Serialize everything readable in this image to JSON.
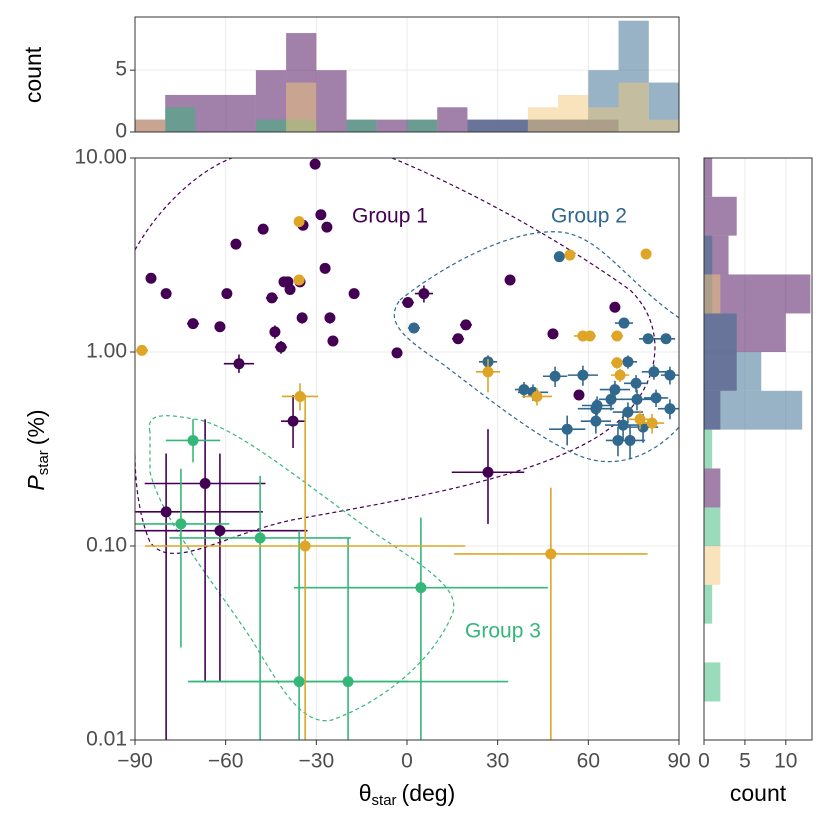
{
  "chart_data": [
    {
      "type": "scatter",
      "xlabel": {
        "symbol": "θ",
        "subscript": "star",
        "unit": "(deg)"
      },
      "ylabel": {
        "symbol": "P",
        "subscript": "star",
        "unit": "(%)"
      },
      "xlim": [
        -90,
        90
      ],
      "xticks": [
        {
          "value": -90,
          "label": "−90"
        },
        {
          "value": -60,
          "label": "−60"
        },
        {
          "value": -30,
          "label": "−30"
        },
        0,
        30,
        60,
        90
      ],
      "ylim": [
        0.01,
        10
      ],
      "log_y": true,
      "yticks": [
        0.01,
        {
          "value": 0.1,
          "label": "0.10"
        },
        {
          "value": 1,
          "label": "1.00"
        },
        {
          "value": 10,
          "label": "10.00"
        }
      ],
      "grid": true,
      "series": [
        {
          "name": "Group 1",
          "color": "#440154",
          "x": [
            -30.4,
            -28.5,
            -34.4,
            -26.5,
            -56.6,
            -47.6,
            -84.7,
            -79.7,
            -59.6,
            -40.7,
            -39.4,
            -38.7,
            -35.4,
            -27.1,
            -17.5,
            -44.7,
            -70.8,
            -61.9,
            -34.7,
            -25.5,
            -43.7,
            -24.5,
            -41.7,
            -55.6,
            -3.3,
            0.3,
            5.6,
            19.5,
            16.9,
            34.1,
            48.3,
            56.9,
            68.8,
            -37.7,
            26.8,
            -66.8,
            -79.7,
            -61.9
          ],
          "values": [
            9.3,
            5.1,
            4.5,
            4.4,
            3.6,
            4.3,
            2.4,
            2.0,
            2.0,
            2.3,
            2.3,
            2.1,
            2.3,
            2.7,
            2.0,
            1.9,
            1.4,
            1.35,
            1.5,
            1.5,
            1.27,
            1.14,
            1.06,
            0.87,
            0.99,
            1.8,
            2.0,
            1.38,
            1.17,
            2.35,
            1.24,
            0.6,
            1.7,
            0.44,
            0.24,
            0.21,
            0.15,
            0.12
          ],
          "xerr": [
            null,
            null,
            null,
            null,
            null,
            null,
            null,
            null,
            null,
            null,
            null,
            null,
            null,
            null,
            null,
            2,
            2,
            null,
            1.5,
            1.5,
            1.5,
            1.5,
            2,
            5,
            null,
            2,
            3,
            2,
            2,
            null,
            1.5,
            null,
            1.5,
            4,
            12,
            20,
            32,
            29
          ],
          "ylower": [
            null,
            null,
            null,
            null,
            null,
            null,
            null,
            null,
            null,
            null,
            null,
            null,
            null,
            null,
            null,
            1.8,
            1.33,
            null,
            1.4,
            1.4,
            1.17,
            1.08,
            0.98,
            0.78,
            null,
            1.7,
            1.8,
            1.3,
            1.1,
            null,
            1.17,
            null,
            1.6,
            0.32,
            0.13,
            0.02,
            0.01,
            0.02
          ],
          "yupper": [
            null,
            null,
            null,
            null,
            null,
            null,
            null,
            null,
            null,
            null,
            null,
            null,
            null,
            null,
            null,
            2.0,
            1.47,
            null,
            1.6,
            1.6,
            1.37,
            1.2,
            1.14,
            0.97,
            null,
            1.9,
            2.2,
            1.46,
            1.24,
            null,
            1.31,
            null,
            1.8,
            0.6,
            0.4,
            0.45,
            0.3,
            0.3
          ]
        },
        {
          "name": "Group 2",
          "color": "#31688e",
          "x": [
            50.4,
            2.3,
            26.8,
            38.7,
            49.0,
            41.7,
            58.2,
            62.5,
            53.0,
            62.9,
            67.5,
            71.8,
            73.1,
            68.8,
            75.8,
            79.8,
            85.7,
            81.7,
            87.0,
            87.0,
            71.5,
            73.8,
            78.1,
            69.8,
            76.1,
            73.1,
            82.4,
            62.5
          ],
          "values": [
            3.1,
            1.33,
            0.89,
            0.64,
            0.75,
            0.62,
            0.76,
            0.51,
            0.4,
            0.53,
            0.57,
            1.41,
            0.89,
            0.64,
            0.69,
            1.17,
            1.17,
            0.79,
            0.76,
            0.51,
            0.42,
            0.35,
            0.41,
            0.35,
            0.57,
            0.49,
            0.58,
            0.44
          ],
          "xerr": [
            null,
            2,
            3,
            3,
            4,
            5,
            5,
            6,
            6,
            5,
            4,
            3,
            3,
            5,
            4,
            3,
            3,
            4,
            3,
            4,
            6,
            5,
            5,
            4,
            5,
            5,
            4,
            5
          ],
          "ylower": [
            null,
            1.25,
            0.82,
            0.58,
            0.66,
            0.56,
            0.67,
            0.45,
            0.33,
            0.47,
            0.5,
            1.33,
            0.82,
            0.57,
            0.62,
            1.1,
            1.1,
            0.72,
            0.68,
            0.45,
            0.35,
            0.28,
            0.34,
            0.29,
            0.5,
            0.43,
            0.52,
            0.38
          ],
          "yupper": [
            null,
            1.41,
            0.96,
            0.7,
            0.84,
            0.68,
            0.85,
            0.57,
            0.47,
            0.59,
            0.64,
            1.49,
            0.96,
            0.71,
            0.76,
            1.24,
            1.24,
            0.86,
            0.84,
            0.57,
            0.49,
            0.42,
            0.48,
            0.41,
            0.64,
            0.55,
            0.64,
            0.5
          ]
        },
        {
          "name": "Group 3",
          "color": "#35b779",
          "x": [
            -70.8,
            -74.8,
            -48.6,
            4.6,
            -35.7,
            -19.5
          ],
          "values": [
            0.35,
            0.13,
            0.11,
            0.061,
            0.02,
            0.02
          ],
          "xerr": [
            9,
            16,
            30,
            42,
            36,
            53
          ],
          "ylower": [
            0.27,
            0.03,
            0.01,
            0.01,
            0.01,
            0.01
          ],
          "yupper": [
            0.45,
            0.25,
            0.23,
            0.14,
            0.12,
            0.11
          ]
        },
        {
          "color": "#dfa526",
          "x": [
            -87.7,
            -35.7,
            -35.7,
            -35.4,
            -33.7,
            26.8,
            43.0,
            47.6,
            53.9,
            58.2,
            60.5,
            69.5,
            69.5,
            70.5,
            77.1,
            79.1,
            81.1
          ],
          "values": [
            1.02,
            4.7,
            2.35,
            0.59,
            0.1,
            0.79,
            0.59,
            0.091,
            3.16,
            1.21,
            1.21,
            1.21,
            0.88,
            0.76,
            0.45,
            3.2,
            0.43
          ],
          "xerr": [
            2,
            null,
            null,
            6,
            53,
            4,
            5,
            32,
            null,
            3,
            2,
            2,
            2,
            3,
            4,
            null,
            4
          ],
          "ylower": [
            0.96,
            null,
            null,
            0.5,
            0.01,
            0.62,
            0.53,
            0.01,
            null,
            1.14,
            1.14,
            1.14,
            0.82,
            0.7,
            0.4,
            null,
            0.38
          ],
          "yupper": [
            1.08,
            null,
            null,
            0.69,
            0.6,
            0.92,
            0.65,
            0.2,
            null,
            1.28,
            1.28,
            1.28,
            0.94,
            0.82,
            0.5,
            null,
            0.48
          ]
        }
      ]
    },
    {
      "type": "histogram",
      "ylabel": "count",
      "bins": [
        -90,
        -80,
        -70,
        -60,
        -50,
        -40,
        -30,
        -20,
        -10,
        0,
        10,
        20,
        30,
        40,
        50,
        60,
        70,
        80,
        90
      ],
      "ylim": [
        0,
        9.3
      ],
      "yticks": [
        0,
        5
      ],
      "series": [
        {
          "color": "#440154",
          "values": [
            1,
            3,
            3,
            3,
            5,
            8,
            5,
            1,
            1,
            1,
            2,
            1,
            1,
            1,
            1,
            1,
            0,
            0
          ]
        },
        {
          "color": "#31688e",
          "values": [
            0,
            0,
            0,
            0,
            0,
            0,
            0,
            0,
            0,
            0,
            0,
            1,
            1,
            1,
            1,
            5,
            9,
            4
          ]
        },
        {
          "color": "#35b779",
          "values": [
            0,
            2,
            0,
            0,
            1,
            1,
            0,
            1,
            0,
            1,
            0,
            0,
            0,
            0,
            0,
            0,
            0,
            0
          ]
        },
        {
          "color": "#f2c77a",
          "values": [
            1,
            0,
            0,
            0,
            0,
            4,
            0,
            0,
            0,
            0,
            0,
            0,
            0,
            2,
            3,
            2,
            4,
            1
          ]
        }
      ]
    },
    {
      "type": "histogram",
      "orientation": "horizontal",
      "xlabel": "count",
      "bins": [
        0.01,
        0.0158,
        0.0251,
        0.0398,
        0.0631,
        0.1,
        0.158,
        0.251,
        0.398,
        0.631,
        1,
        1.58,
        2.51,
        3.98,
        6.31,
        10
      ],
      "xlim": [
        0,
        13.2
      ],
      "xticks": [
        0,
        5,
        10
      ],
      "series": [
        {
          "color": "#440154",
          "values": [
            0,
            0,
            0,
            0,
            0,
            0,
            2,
            0,
            2,
            4,
            10,
            13,
            3,
            4,
            1
          ]
        },
        {
          "color": "#31688e",
          "values": [
            0,
            0,
            0,
            0,
            0,
            0,
            0,
            0,
            12,
            7,
            4,
            1,
            1,
            0,
            0
          ]
        },
        {
          "color": "#35b779",
          "values": [
            0,
            2,
            0,
            1,
            0,
            2,
            0,
            1,
            0,
            0,
            0,
            0,
            0,
            0,
            0
          ]
        },
        {
          "color": "#f2c77a",
          "values": [
            0,
            0,
            0,
            0,
            2,
            0,
            0,
            0,
            0,
            0,
            0,
            2,
            0,
            0,
            0
          ]
        }
      ]
    }
  ]
}
